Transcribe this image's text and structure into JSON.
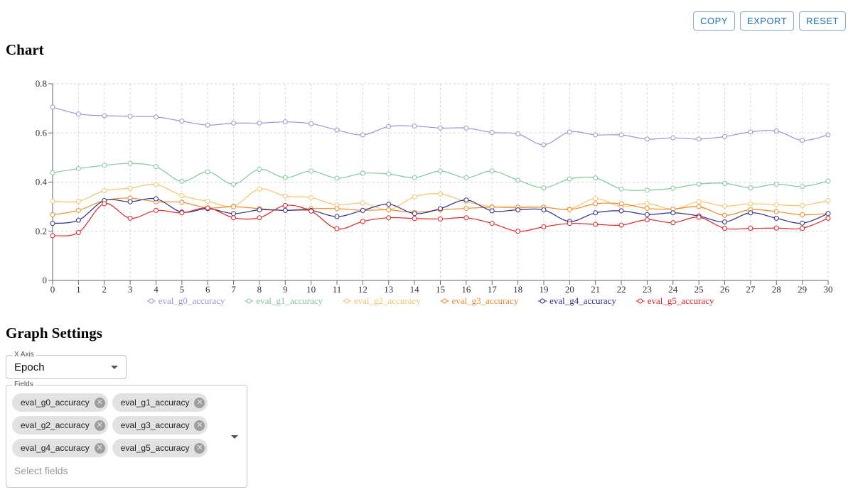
{
  "toolbar": {
    "copy_label": "COPY",
    "export_label": "EXPORT",
    "reset_label": "RESET"
  },
  "chart_section": {
    "title": "Chart"
  },
  "settings": {
    "title": "Graph Settings",
    "x_axis": {
      "label": "X Axis",
      "value": "Epoch"
    },
    "fields": {
      "label": "Fields",
      "placeholder": "Select fields",
      "chips": [
        "eval_g0_accuracy",
        "eval_g1_accuracy",
        "eval_g2_accuracy",
        "eval_g3_accuracy",
        "eval_g4_accuracy",
        "eval_g5_accuracy"
      ]
    }
  },
  "icons": {
    "chip_remove": "close-circle-icon",
    "dropdown": "caret-down-icon"
  },
  "chart_data": {
    "type": "line",
    "xlim": [
      0,
      30
    ],
    "ylim": [
      0,
      0.8
    ],
    "yticks": [
      0,
      0.2,
      0.4,
      0.6,
      0.8
    ],
    "ytick_labels": [
      "0",
      "0.2",
      "0.4",
      "0.6",
      "0.8"
    ],
    "grid": true,
    "legend_position": "bottom",
    "x": [
      0,
      1,
      2,
      3,
      4,
      5,
      6,
      7,
      8,
      9,
      10,
      11,
      12,
      13,
      14,
      15,
      16,
      17,
      18,
      19,
      20,
      21,
      22,
      23,
      24,
      25,
      26,
      27,
      28,
      29,
      30
    ],
    "series": [
      {
        "name": "eval_g0_accuracy",
        "color": "#9c94d6",
        "values": [
          0.705,
          0.677,
          0.67,
          0.668,
          0.665,
          0.648,
          0.632,
          0.64,
          0.64,
          0.645,
          0.638,
          0.612,
          0.592,
          0.626,
          0.628,
          0.62,
          0.62,
          0.602,
          0.596,
          0.552,
          0.604,
          0.592,
          0.592,
          0.575,
          0.58,
          0.575,
          0.585,
          0.604,
          0.608,
          0.57,
          0.592
        ]
      },
      {
        "name": "eval_g1_accuracy",
        "color": "#82c79e",
        "values": [
          0.438,
          0.455,
          0.468,
          0.476,
          0.463,
          0.403,
          0.442,
          0.392,
          0.452,
          0.418,
          0.445,
          0.416,
          0.436,
          0.433,
          0.418,
          0.445,
          0.418,
          0.445,
          0.408,
          0.377,
          0.413,
          0.417,
          0.372,
          0.367,
          0.375,
          0.392,
          0.395,
          0.377,
          0.392,
          0.382,
          0.404
        ]
      },
      {
        "name": "eval_g2_accuracy",
        "color": "#f5c36a",
        "values": [
          0.322,
          0.322,
          0.365,
          0.375,
          0.39,
          0.345,
          0.322,
          0.303,
          0.372,
          0.343,
          0.337,
          0.307,
          0.315,
          0.288,
          0.34,
          0.352,
          0.32,
          0.3,
          0.295,
          0.298,
          0.29,
          0.333,
          0.3,
          0.313,
          0.29,
          0.32,
          0.302,
          0.312,
          0.308,
          0.305,
          0.325
        ]
      },
      {
        "name": "eval_g3_accuracy",
        "color": "#ee8a2a",
        "values": [
          0.267,
          0.285,
          0.325,
          0.335,
          0.32,
          0.318,
          0.295,
          0.3,
          0.292,
          0.285,
          0.292,
          0.292,
          0.285,
          0.287,
          0.277,
          0.287,
          0.293,
          0.298,
          0.298,
          0.298,
          0.288,
          0.312,
          0.312,
          0.293,
          0.29,
          0.3,
          0.265,
          0.288,
          0.28,
          0.267,
          0.272
        ]
      },
      {
        "name": "eval_g4_accuracy",
        "color": "#2e2e8c",
        "values": [
          0.232,
          0.245,
          0.325,
          0.32,
          0.332,
          0.278,
          0.292,
          0.272,
          0.287,
          0.285,
          0.285,
          0.26,
          0.285,
          0.31,
          0.272,
          0.292,
          0.327,
          0.283,
          0.287,
          0.287,
          0.24,
          0.275,
          0.283,
          0.268,
          0.275,
          0.262,
          0.238,
          0.275,
          0.253,
          0.233,
          0.272
        ]
      },
      {
        "name": "eval_g5_accuracy",
        "color": "#e02424",
        "values": [
          0.182,
          0.195,
          0.312,
          0.253,
          0.285,
          0.275,
          0.295,
          0.255,
          0.255,
          0.305,
          0.282,
          0.21,
          0.24,
          0.255,
          0.252,
          0.25,
          0.255,
          0.232,
          0.2,
          0.218,
          0.232,
          0.228,
          0.225,
          0.247,
          0.235,
          0.257,
          0.212,
          0.212,
          0.213,
          0.212,
          0.253
        ]
      }
    ]
  }
}
